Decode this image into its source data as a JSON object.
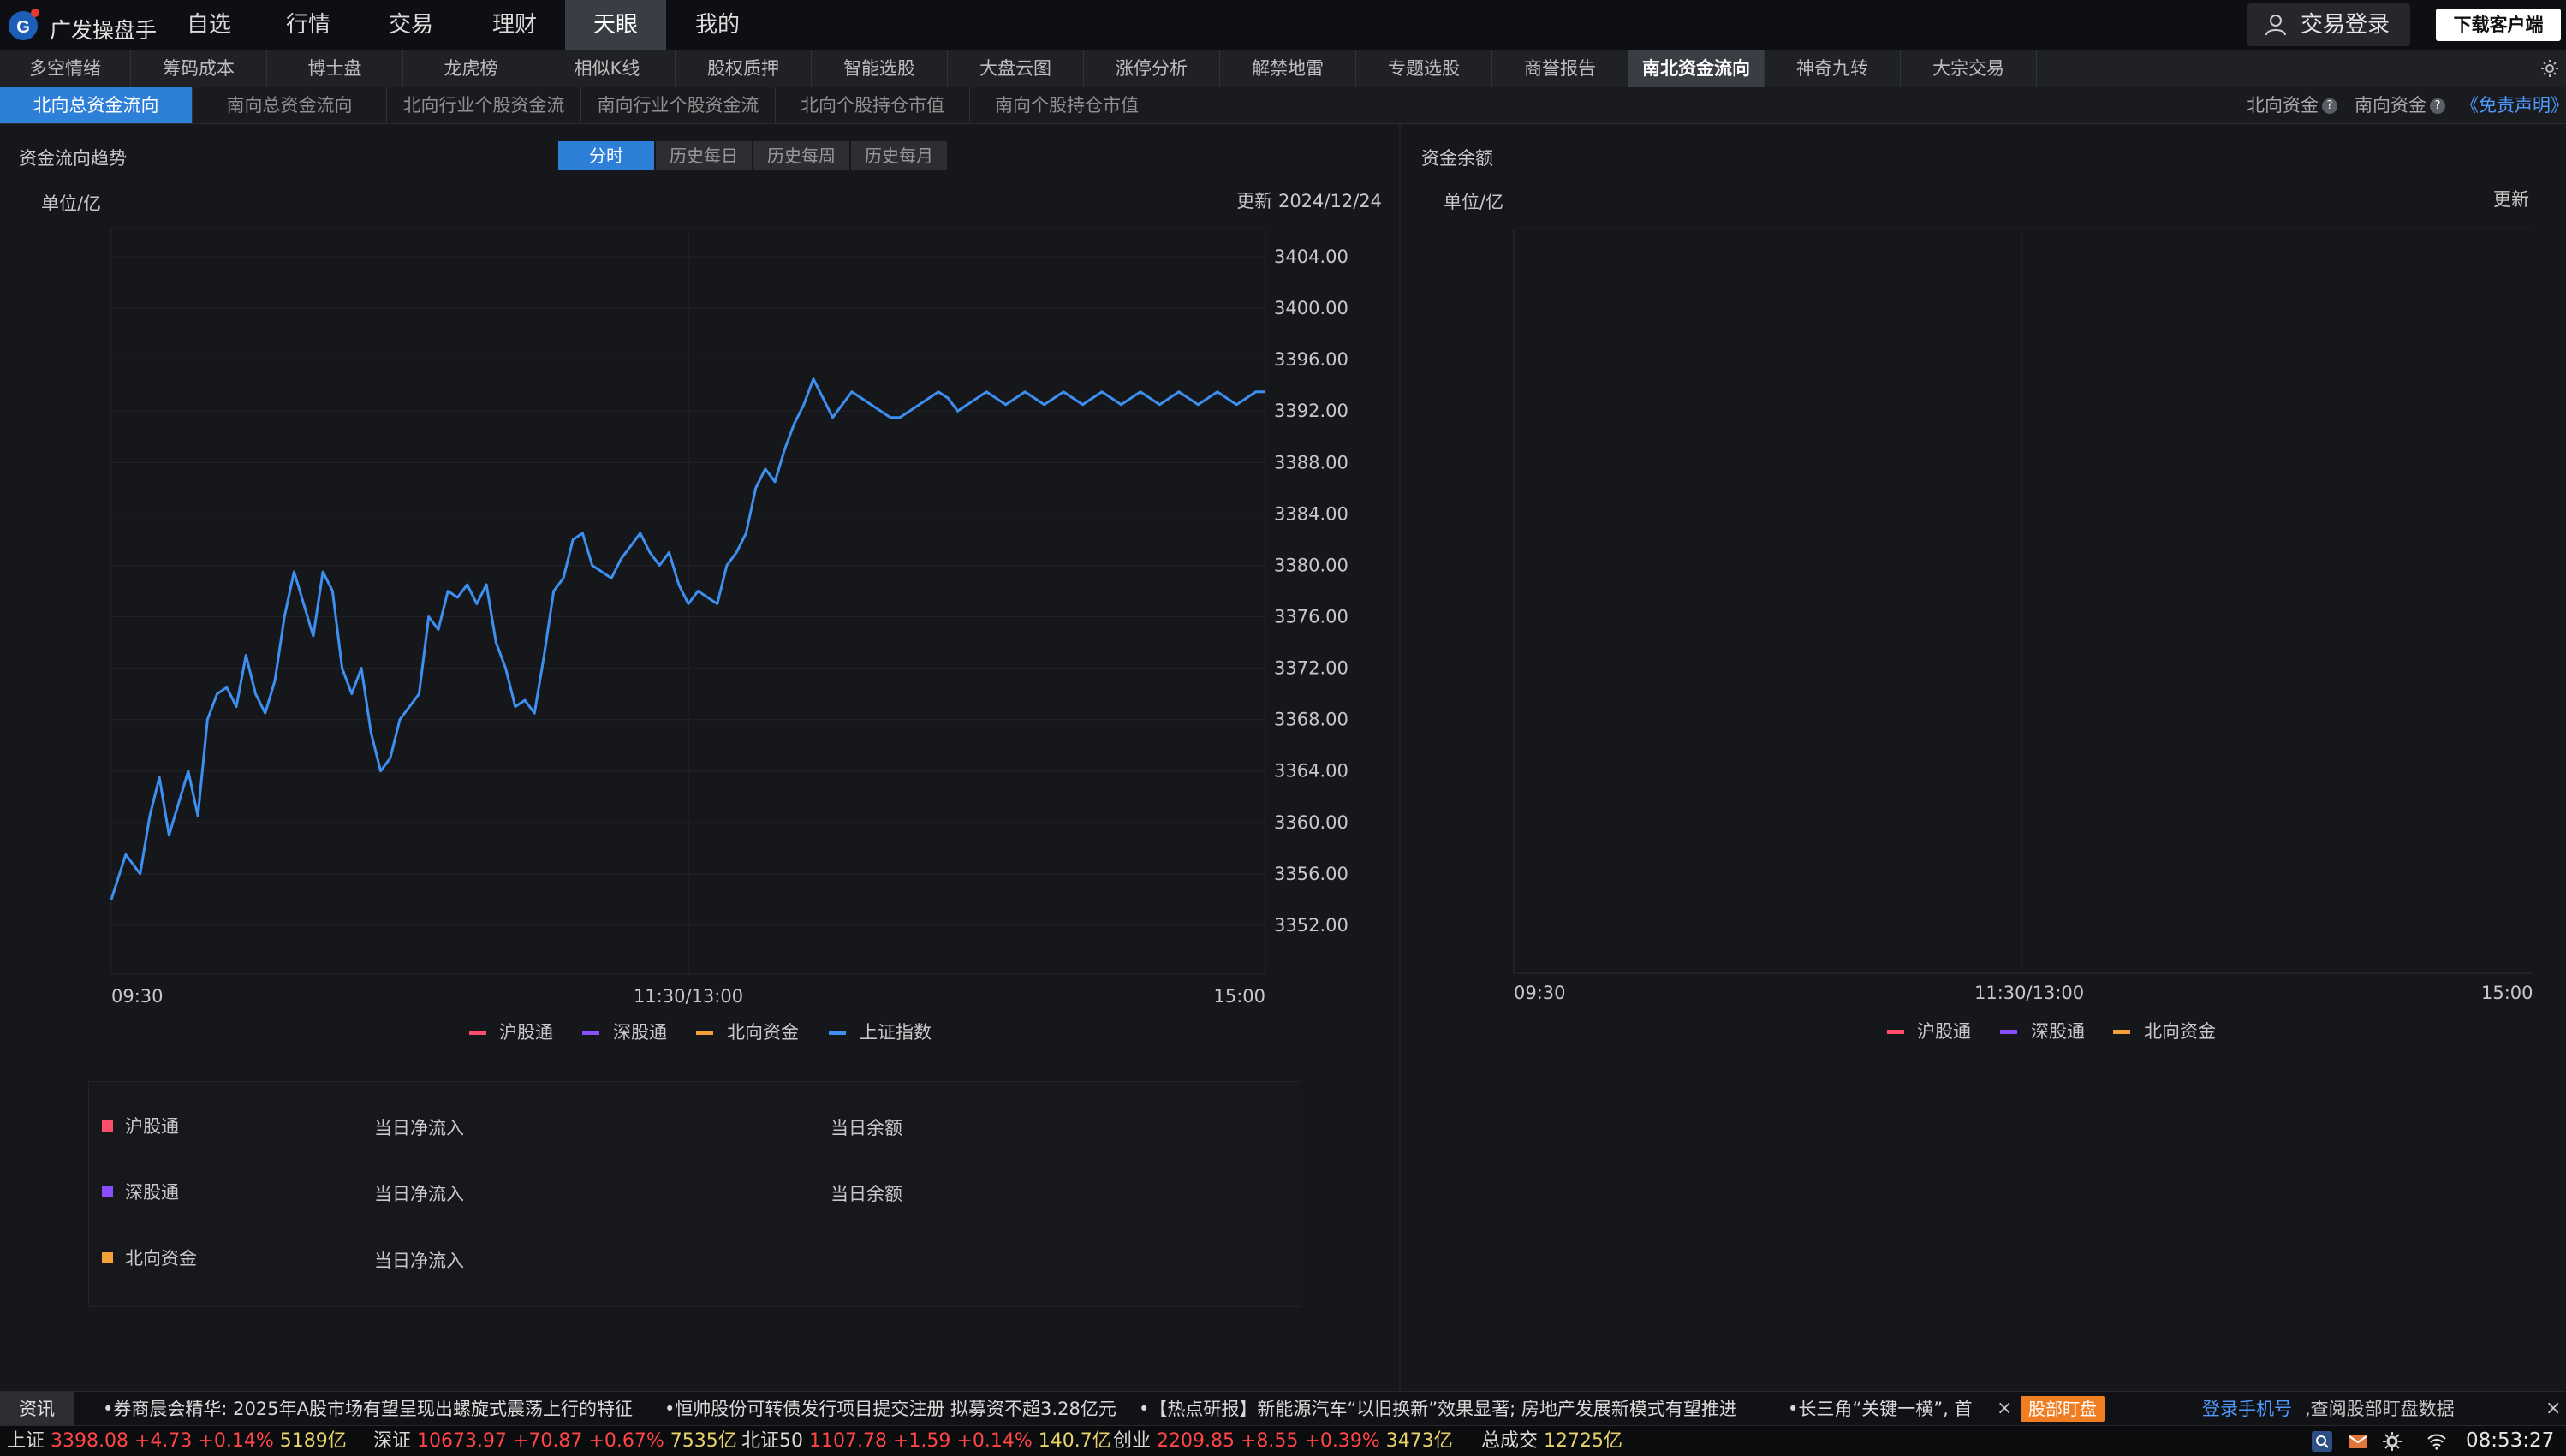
{
  "app": {
    "title": "广发操盘手"
  },
  "nav": {
    "items": [
      "自选",
      "行情",
      "交易",
      "理财",
      "天眼",
      "我的"
    ],
    "active": 4,
    "login": "交易登录",
    "download": "下载客户端"
  },
  "subnav": {
    "items": [
      "多空情绪",
      "筹码成本",
      "博士盘",
      "龙虎榜",
      "相似K线",
      "股权质押",
      "智能选股",
      "大盘云图",
      "涨停分析",
      "解禁地雷",
      "专题选股",
      "商誉报告",
      "南北资金流向",
      "神奇九转",
      "大宗交易"
    ],
    "active": 12
  },
  "tabs": {
    "items": [
      "北向总资金流向",
      "南向总资金流向",
      "北向行业个股资金流",
      "南向行业个股资金流",
      "北向个股持仓市值",
      "南向个股持仓市值"
    ],
    "active": 0,
    "north_fund": "北向资金",
    "south_fund": "南向资金",
    "disclaimer": "《免责声明》"
  },
  "left": {
    "title": "资金流向趋势",
    "ranges": [
      "分时",
      "历史每日",
      "历史每周",
      "历史每月"
    ],
    "active_range": 0,
    "unit": "单位/亿",
    "updated": "更新 2024/12/24",
    "legend": [
      "沪股通",
      "深股通",
      "北向资金",
      "上证指数"
    ]
  },
  "right": {
    "title": "资金余额",
    "unit": "单位/亿",
    "updated": "更新",
    "legend": [
      "沪股通",
      "深股通",
      "北向资金"
    ],
    "x_ticks": [
      "09:30",
      "11:30/13:00",
      "15:00"
    ]
  },
  "summary": {
    "rows": [
      {
        "name": "沪股通",
        "inflow": "当日净流入",
        "balance": "当日余额",
        "color": "#ff4d6a"
      },
      {
        "name": "深股通",
        "inflow": "当日净流入",
        "balance": "当日余额",
        "color": "#8a4dff"
      },
      {
        "name": "北向资金",
        "inflow": "当日净流入",
        "balance": "",
        "color": "#f5a13a"
      }
    ]
  },
  "colors": {
    "sh_connect": "#ff4d6a",
    "sz_connect": "#8a4dff",
    "northbound": "#f5a13a",
    "sh_index": "#3d8ff0",
    "accent": "#2e7fd8"
  },
  "news": {
    "label": "资讯",
    "items": [
      "•券商晨会精华: 2025年A股市场有望呈现出螺旋式震荡上行的特征",
      "•恒帅股份可转债发行项目提交注册 拟募资不超3.28亿元",
      "•【热点研报】新能源汽车“以旧换新”效果显著; 房地产发展新模式有望推进",
      "•长三角“关键一横”, 首"
    ],
    "badge": "股部盯盘",
    "login_link": "登录手机号",
    "login_rest": ",查阅股部盯盘数据"
  },
  "status": {
    "indices": [
      {
        "name": "上证",
        "price": "3398.08",
        "change": "+4.73",
        "pct": "+0.14%",
        "amount": "5189亿"
      },
      {
        "name": "深证",
        "price": "10673.97",
        "change": "+70.87",
        "pct": "+0.67%",
        "amount": "7535亿"
      },
      {
        "name": "北证50",
        "price": "1107.78",
        "change": "+1.59",
        "pct": "+0.14%",
        "amount": "140.7亿"
      },
      {
        "name": "创业",
        "price": "2209.85",
        "change": "+8.55",
        "pct": "+0.39%",
        "amount": "3473亿"
      }
    ],
    "total_label": "总成交",
    "total_amount": "12725亿",
    "time": "08:53:27"
  },
  "chart_data": {
    "type": "line",
    "title": "资金流向趋势",
    "ylabel": "单位/亿",
    "x_ticks": [
      "09:30",
      "11:30/13:00",
      "15:00"
    ],
    "y_ticks": [
      3352.0,
      3356.0,
      3360.0,
      3364.0,
      3368.0,
      3372.0,
      3376.0,
      3380.0,
      3384.0,
      3388.0,
      3392.0,
      3396.0,
      3400.0,
      3404.0
    ],
    "ylim": [
      3348.2,
      3406.2
    ],
    "series": [
      {
        "name": "上证指数",
        "color": "#3d8ff0",
        "x": [
          0,
          3,
          6,
          8,
          10,
          12,
          14,
          16,
          18,
          20,
          22,
          24,
          26,
          28,
          30,
          32,
          34,
          36,
          38,
          40,
          42,
          44,
          46,
          48,
          50,
          52,
          54,
          56,
          58,
          60,
          62,
          64,
          66,
          68,
          70,
          72,
          74,
          76,
          78,
          80,
          82,
          84,
          86,
          88,
          90,
          92,
          94,
          96,
          98,
          100,
          102,
          104,
          106,
          108,
          110,
          112,
          114,
          116,
          118,
          120,
          122,
          124,
          126,
          128,
          130,
          132,
          134,
          136,
          138,
          140,
          142,
          144,
          146,
          148,
          150,
          152,
          154,
          156,
          158,
          160,
          162,
          164,
          166,
          168,
          170,
          172,
          174,
          176,
          178,
          180,
          182,
          184,
          186,
          188,
          190,
          192,
          194,
          196,
          198,
          200,
          202,
          204,
          206,
          208,
          210,
          212,
          214,
          216,
          218,
          220,
          222,
          224,
          226,
          228,
          230,
          232,
          234,
          236,
          238,
          240
        ],
        "values": [
          3354.0,
          3357.5,
          3356.0,
          3360.5,
          3363.5,
          3359.0,
          3361.5,
          3364.0,
          3360.5,
          3368.0,
          3370.0,
          3370.5,
          3369.0,
          3373.0,
          3370.0,
          3368.5,
          3371.0,
          3376.0,
          3379.5,
          3377.0,
          3374.5,
          3379.5,
          3378.0,
          3372.0,
          3370.0,
          3372.0,
          3367.0,
          3364.0,
          3365.0,
          3368.0,
          3369.0,
          3370.0,
          3376.0,
          3375.0,
          3378.0,
          3377.5,
          3378.5,
          3377.0,
          3378.5,
          3374.0,
          3372.0,
          3369.0,
          3369.5,
          3368.5,
          3373.0,
          3378.0,
          3379.0,
          3382.0,
          3382.5,
          3380.0,
          3379.5,
          3379.0,
          3380.5,
          3381.5,
          3382.5,
          3381.0,
          3380.0,
          3381.0,
          3378.5,
          3377.0,
          3378.0,
          3377.5,
          3377.0,
          3380.0,
          3381.0,
          3382.5,
          3386.0,
          3387.5,
          3386.5,
          3389.0,
          3391.0,
          3392.5,
          3394.5,
          3393.0,
          3391.5,
          3392.5,
          3393.5,
          3393.0,
          3392.5,
          3392.0,
          3391.5,
          3391.5,
          3392.0,
          3392.5,
          3393.0,
          3393.5,
          3393.0,
          3392.0,
          3392.5,
          3393.0,
          3393.5,
          3393.0,
          3392.5,
          3393.0,
          3393.5,
          3393.0,
          3392.5,
          3393.0,
          3393.5,
          3393.0,
          3392.5,
          3393.0,
          3393.5,
          3393.0,
          3392.5,
          3393.0,
          3393.5,
          3393.0,
          3392.5,
          3393.0,
          3393.5,
          3393.0,
          3392.5,
          3393.0,
          3393.5,
          3393.0,
          3392.5,
          3393.0,
          3393.5,
          3393.5
        ]
      },
      {
        "name": "沪股通",
        "color": "#ff4d6a",
        "values": []
      },
      {
        "name": "深股通",
        "color": "#8a4dff",
        "values": []
      },
      {
        "name": "北向资金",
        "color": "#f5a13a",
        "values": []
      }
    ],
    "grid": true,
    "legend_position": "bottom"
  }
}
